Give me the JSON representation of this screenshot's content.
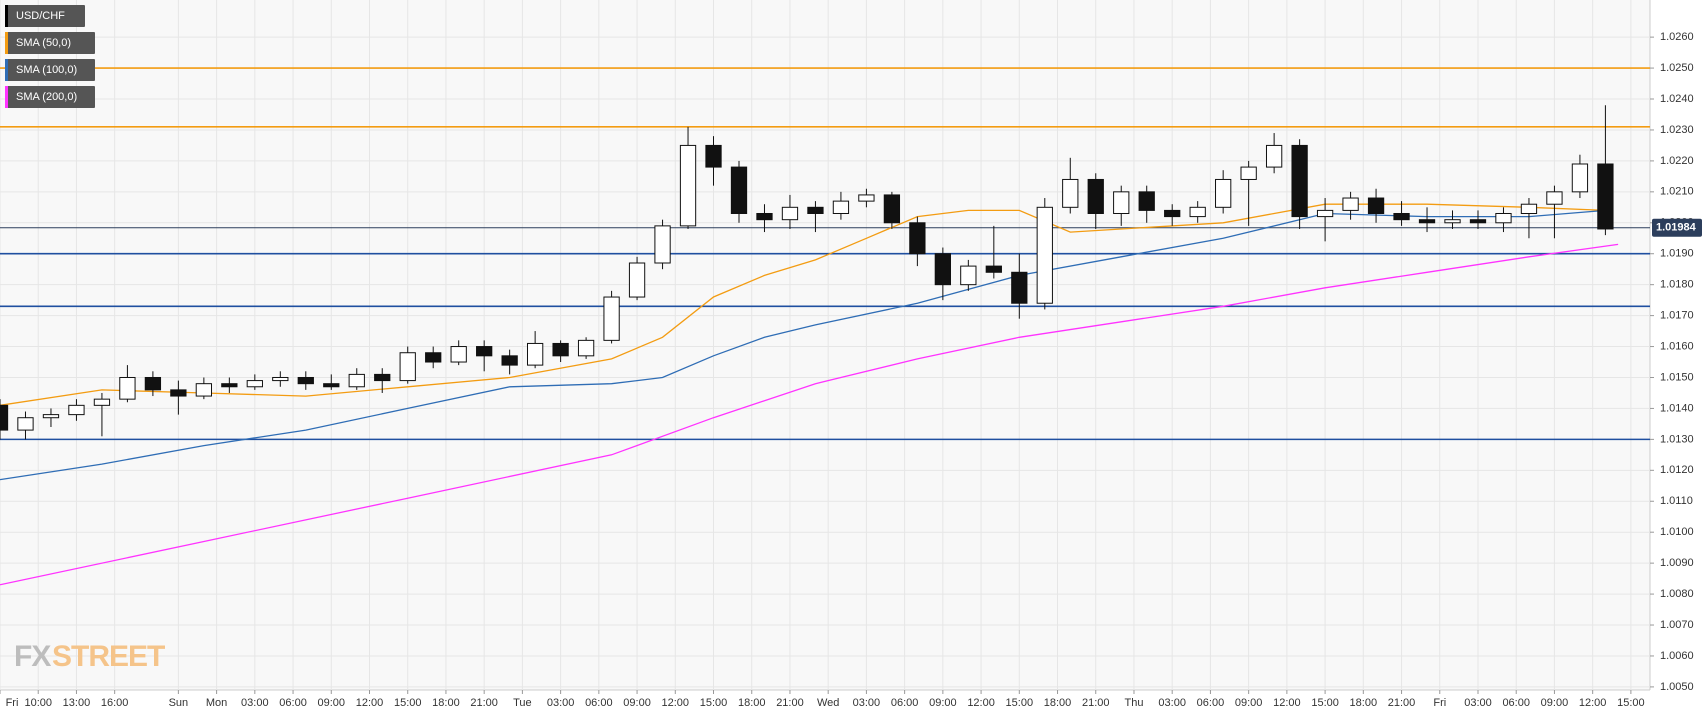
{
  "chart_data": {
    "type": "candlestick",
    "symbol": "USD/CHF",
    "symbol_color": "#000000",
    "watermark": [
      "FX",
      "STREET"
    ],
    "grid": true,
    "xlim": [
      0,
      129.5
    ],
    "ylim": [
      1.0049,
      1.0272
    ],
    "xticks": [
      {
        "value": 0,
        "label": "Fri"
      },
      {
        "value": 3,
        "label": "10:00"
      },
      {
        "value": 6,
        "label": "13:00"
      },
      {
        "value": 9,
        "label": "16:00"
      },
      {
        "value": 14,
        "label": "Sun"
      },
      {
        "value": 17,
        "label": "Mon"
      },
      {
        "value": 20,
        "label": "03:00"
      },
      {
        "value": 23,
        "label": "06:00"
      },
      {
        "value": 26,
        "label": "09:00"
      },
      {
        "value": 29,
        "label": "12:00"
      },
      {
        "value": 32,
        "label": "15:00"
      },
      {
        "value": 35,
        "label": "18:00"
      },
      {
        "value": 38,
        "label": "21:00"
      },
      {
        "value": 41,
        "label": "Tue"
      },
      {
        "value": 44,
        "label": "03:00"
      },
      {
        "value": 47,
        "label": "06:00"
      },
      {
        "value": 50,
        "label": "09:00"
      },
      {
        "value": 53,
        "label": "12:00"
      },
      {
        "value": 56,
        "label": "15:00"
      },
      {
        "value": 59,
        "label": "18:00"
      },
      {
        "value": 62,
        "label": "21:00"
      },
      {
        "value": 65,
        "label": "Wed"
      },
      {
        "value": 68,
        "label": "03:00"
      },
      {
        "value": 71,
        "label": "06:00"
      },
      {
        "value": 74,
        "label": "09:00"
      },
      {
        "value": 77,
        "label": "12:00"
      },
      {
        "value": 80,
        "label": "15:00"
      },
      {
        "value": 83,
        "label": "18:00"
      },
      {
        "value": 86,
        "label": "21:00"
      },
      {
        "value": 89,
        "label": "Thu"
      },
      {
        "value": 92,
        "label": "03:00"
      },
      {
        "value": 95,
        "label": "06:00"
      },
      {
        "value": 98,
        "label": "09:00"
      },
      {
        "value": 101,
        "label": "12:00"
      },
      {
        "value": 104,
        "label": "15:00"
      },
      {
        "value": 107,
        "label": "18:00"
      },
      {
        "value": 110,
        "label": "21:00"
      },
      {
        "value": 113,
        "label": "Fri"
      },
      {
        "value": 116,
        "label": "03:00"
      },
      {
        "value": 119,
        "label": "06:00"
      },
      {
        "value": 122,
        "label": "09:00"
      },
      {
        "value": 125,
        "label": "12:00"
      },
      {
        "value": 128,
        "label": "15:00"
      }
    ],
    "yticks": [
      {
        "value": 1.005,
        "label": "1.0050"
      },
      {
        "value": 1.006,
        "label": "1.0060"
      },
      {
        "value": 1.007,
        "label": "1.0070"
      },
      {
        "value": 1.008,
        "label": "1.0080"
      },
      {
        "value": 1.009,
        "label": "1.0090"
      },
      {
        "value": 1.01,
        "label": "1.0100"
      },
      {
        "value": 1.011,
        "label": "1.0110"
      },
      {
        "value": 1.012,
        "label": "1.0120"
      },
      {
        "value": 1.013,
        "label": "1.0130"
      },
      {
        "value": 1.014,
        "label": "1.0140"
      },
      {
        "value": 1.015,
        "label": "1.0150"
      },
      {
        "value": 1.016,
        "label": "1.0160"
      },
      {
        "value": 1.017,
        "label": "1.0170"
      },
      {
        "value": 1.018,
        "label": "1.0180"
      },
      {
        "value": 1.019,
        "label": "1.0190"
      },
      {
        "value": 1.02,
        "label": "1.0200"
      },
      {
        "value": 1.021,
        "label": "1.0210"
      },
      {
        "value": 1.022,
        "label": "1.0220"
      },
      {
        "value": 1.023,
        "label": "1.0230"
      },
      {
        "value": 1.024,
        "label": "1.0240"
      },
      {
        "value": 1.025,
        "label": "1.0250"
      },
      {
        "value": 1.026,
        "label": "1.0260"
      }
    ],
    "candles": {
      "x": [
        0,
        2,
        4,
        6,
        8,
        10,
        12,
        14,
        16,
        18,
        20,
        22,
        24,
        26,
        28,
        30,
        32,
        34,
        36,
        38,
        40,
        42,
        44,
        46,
        48,
        50,
        52,
        54,
        56,
        58,
        60,
        62,
        64,
        66,
        68,
        70,
        72,
        74,
        76,
        78,
        80,
        82,
        84,
        86,
        88,
        90,
        92,
        94,
        96,
        98,
        100,
        102,
        104,
        106,
        108,
        110,
        112,
        114,
        116,
        118,
        120,
        122,
        124,
        126
      ],
      "open": [
        1.0141,
        1.0133,
        1.0137,
        1.0138,
        1.0141,
        1.0143,
        1.015,
        1.0146,
        1.0144,
        1.0148,
        1.0147,
        1.0149,
        1.015,
        1.0148,
        1.0147,
        1.0151,
        1.0149,
        1.0158,
        1.0155,
        1.016,
        1.0157,
        1.0154,
        1.0161,
        1.0157,
        1.0162,
        1.0176,
        1.0187,
        1.0199,
        1.0225,
        1.0218,
        1.0203,
        1.0201,
        1.0205,
        1.0203,
        1.0207,
        1.0209,
        1.02,
        1.019,
        1.018,
        1.0186,
        1.0184,
        1.0174,
        1.0205,
        1.0214,
        1.0203,
        1.021,
        1.0204,
        1.0202,
        1.0205,
        1.0214,
        1.0218,
        1.0225,
        1.0202,
        1.0204,
        1.0208,
        1.0203,
        1.0201,
        1.02,
        1.0201,
        1.02,
        1.0203,
        1.0206,
        1.021,
        1.0219
      ],
      "high": [
        1.0143,
        1.0139,
        1.014,
        1.0143,
        1.0145,
        1.0154,
        1.0152,
        1.0149,
        1.015,
        1.015,
        1.0151,
        1.0152,
        1.0152,
        1.0151,
        1.0153,
        1.0153,
        1.016,
        1.016,
        1.0162,
        1.0162,
        1.0159,
        1.0165,
        1.0162,
        1.0163,
        1.0178,
        1.0189,
        1.0201,
        1.0231,
        1.0228,
        1.022,
        1.0206,
        1.0209,
        1.0207,
        1.021,
        1.0211,
        1.021,
        1.0202,
        1.0192,
        1.0188,
        1.0199,
        1.019,
        1.0208,
        1.0221,
        1.0216,
        1.0212,
        1.0212,
        1.0206,
        1.0207,
        1.0217,
        1.022,
        1.0229,
        1.0227,
        1.0208,
        1.021,
        1.0211,
        1.0207,
        1.0205,
        1.0204,
        1.0204,
        1.0205,
        1.0208,
        1.0212,
        1.0222,
        1.0238
      ],
      "low": [
        1.013,
        1.013,
        1.0134,
        1.0136,
        1.0131,
        1.0142,
        1.0144,
        1.0138,
        1.0143,
        1.0145,
        1.0146,
        1.0147,
        1.0146,
        1.0146,
        1.0146,
        1.0145,
        1.0148,
        1.0153,
        1.0154,
        1.0152,
        1.0151,
        1.0153,
        1.0155,
        1.0156,
        1.0161,
        1.0175,
        1.0185,
        1.0198,
        1.0212,
        1.02,
        1.0197,
        1.0198,
        1.0197,
        1.0201,
        1.0205,
        1.0198,
        1.0186,
        1.0175,
        1.0178,
        1.0182,
        1.0169,
        1.0172,
        1.0203,
        1.0198,
        1.0199,
        1.02,
        1.0199,
        1.02,
        1.0203,
        1.0199,
        1.0216,
        1.0198,
        1.0194,
        1.0201,
        1.02,
        1.0199,
        1.0197,
        1.0198,
        1.0198,
        1.0197,
        1.0195,
        1.0195,
        1.0208,
        1.0196
      ],
      "close": [
        1.0133,
        1.0137,
        1.0138,
        1.0141,
        1.0143,
        1.015,
        1.0146,
        1.0144,
        1.0148,
        1.0147,
        1.0149,
        1.015,
        1.0148,
        1.0147,
        1.0151,
        1.0149,
        1.0158,
        1.0155,
        1.016,
        1.0157,
        1.0154,
        1.0161,
        1.0157,
        1.0162,
        1.0176,
        1.0187,
        1.0199,
        1.0225,
        1.0218,
        1.0203,
        1.0201,
        1.0205,
        1.0203,
        1.0207,
        1.0209,
        1.02,
        1.019,
        1.018,
        1.0186,
        1.0184,
        1.0174,
        1.0205,
        1.0214,
        1.0203,
        1.021,
        1.0204,
        1.0202,
        1.0205,
        1.0214,
        1.0218,
        1.0225,
        1.0202,
        1.0204,
        1.0208,
        1.0203,
        1.0201,
        1.02,
        1.0201,
        1.02,
        1.0203,
        1.0206,
        1.021,
        1.0219,
        1.0198
      ]
    },
    "series": [
      {
        "name": "SMA (50,0)",
        "color": "#f39c12",
        "x": [
          0,
          8,
          16,
          24,
          32,
          40,
          48,
          52,
          56,
          60,
          64,
          68,
          72,
          76,
          80,
          84,
          88,
          96,
          100,
          104,
          112,
          120,
          126
        ],
        "values": [
          1.0141,
          1.0146,
          1.0145,
          1.0144,
          1.0147,
          1.015,
          1.0156,
          1.0163,
          1.0176,
          1.0183,
          1.0188,
          1.0195,
          1.0202,
          1.0204,
          1.0204,
          1.0197,
          1.0198,
          1.02,
          1.0203,
          1.0206,
          1.0206,
          1.0205,
          1.0204
        ]
      },
      {
        "name": "SMA (100,0)",
        "color": "#2f6db5",
        "x": [
          0,
          8,
          16,
          24,
          32,
          40,
          48,
          52,
          56,
          60,
          64,
          72,
          80,
          88,
          96,
          104,
          112,
          120,
          126
        ],
        "values": [
          1.0117,
          1.0122,
          1.0128,
          1.0133,
          1.014,
          1.0147,
          1.0148,
          1.015,
          1.0157,
          1.0163,
          1.0167,
          1.0174,
          1.0183,
          1.0189,
          1.0195,
          1.0203,
          1.0202,
          1.0202,
          1.0204
        ]
      },
      {
        "name": "SMA (200,0)",
        "color": "#ff33ff",
        "x": [
          0,
          16,
          32,
          48,
          56,
          64,
          72,
          80,
          88,
          96,
          104,
          112,
          120,
          127
        ],
        "values": [
          1.0083,
          1.0097,
          1.0111,
          1.0125,
          1.0137,
          1.0148,
          1.0156,
          1.0163,
          1.0168,
          1.0173,
          1.0179,
          1.0184,
          1.0189,
          1.0193
        ]
      }
    ],
    "levels": [
      {
        "value": 1.025,
        "color": "#f39c12"
      },
      {
        "value": 1.0231,
        "color": "#f39c12"
      },
      {
        "value": 1.019,
        "color": "#1f4fa0"
      },
      {
        "value": 1.0173,
        "color": "#1f4fa0"
      },
      {
        "value": 1.013,
        "color": "#1f4fa0"
      }
    ],
    "last_price": {
      "value": 1.01984,
      "label": "1.01984",
      "color": "#2c3e5c"
    }
  }
}
